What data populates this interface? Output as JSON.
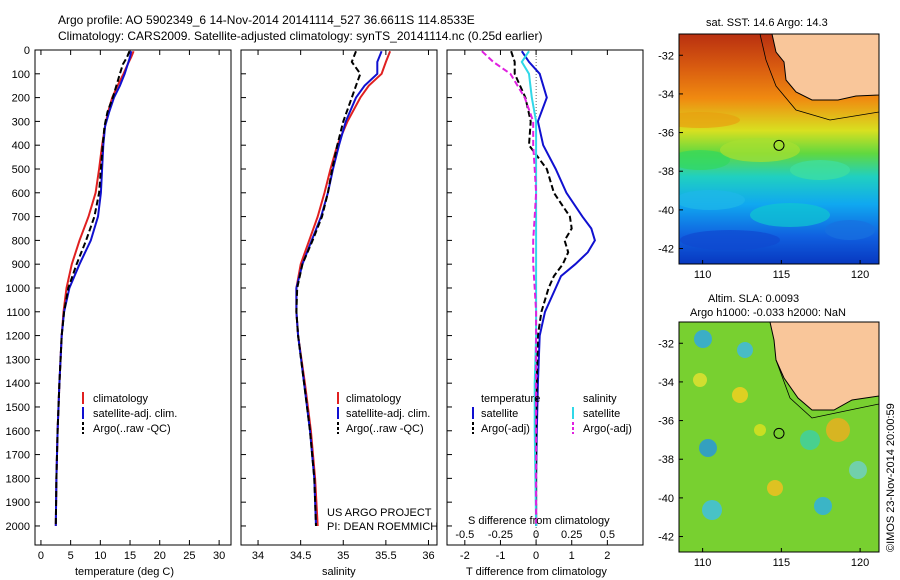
{
  "title": {
    "line1": "Argo profile: AO 5902349_6 14-Nov-2014 20141114_527 36.6611S 114.8533E",
    "line2": "Climatology: CARS2009. Satellite-adjusted climatology: synTS_20141114.nc (0.25d earlier)"
  },
  "colors": {
    "red": "#e02020",
    "blue": "#1010d0",
    "black": "#000000",
    "cyan": "#30d8e8",
    "magenta": "#e020e0",
    "land": "#f9c69a"
  },
  "chart_data": [
    {
      "id": "temperature-panel",
      "type": "line",
      "xlabel": "temperature (deg C)",
      "xlim": [
        -1,
        32
      ],
      "xticks": [
        "0",
        "5",
        "10",
        "15",
        "20",
        "25",
        "30"
      ],
      "xtick_values": [
        0,
        5,
        10,
        15,
        20,
        25,
        30
      ],
      "ylim": [
        2080,
        0
      ],
      "yticks": [
        "0",
        "100",
        "200",
        "300",
        "400",
        "500",
        "600",
        "700",
        "800",
        "900",
        "1000",
        "1100",
        "1200",
        "1300",
        "1400",
        "1500",
        "1600",
        "1700",
        "1800",
        "1900",
        "2000"
      ],
      "ytick_values": [
        0,
        100,
        200,
        300,
        400,
        500,
        600,
        700,
        800,
        900,
        1000,
        1100,
        1200,
        1300,
        1400,
        1500,
        1600,
        1700,
        1800,
        1900,
        2000
      ],
      "legend": [
        "climatology",
        "satellite-adj. clim.",
        "Argo(..raw -QC)"
      ],
      "series": [
        {
          "name": "climatology",
          "color": "red",
          "dash": "",
          "depth": [
            5,
            30,
            60,
            100,
            150,
            200,
            260,
            320,
            400,
            500,
            600,
            700,
            800,
            900,
            1000,
            1100,
            1200,
            1400,
            1600,
            1800,
            2000
          ],
          "values": [
            15.6,
            15.2,
            14.6,
            13.9,
            12.9,
            12.0,
            11.3,
            10.8,
            10.3,
            9.8,
            9.2,
            8.0,
            6.5,
            5.2,
            4.3,
            3.8,
            3.5,
            3.1,
            2.8,
            2.6,
            2.5
          ]
        },
        {
          "name": "satellite-adj. clim.",
          "color": "blue",
          "dash": "",
          "depth": [
            5,
            30,
            60,
            100,
            150,
            200,
            260,
            320,
            400,
            500,
            600,
            700,
            800,
            900,
            1000,
            1100,
            1200,
            1400,
            1600,
            1800,
            2000
          ],
          "values": [
            15.2,
            15.0,
            14.6,
            14.1,
            13.3,
            12.3,
            11.5,
            10.8,
            10.5,
            10.3,
            10.1,
            9.6,
            8.4,
            6.5,
            4.8,
            3.9,
            3.5,
            3.1,
            2.8,
            2.6,
            2.5
          ]
        },
        {
          "name": "Argo(..raw -QC)",
          "color": "black",
          "dash": "6,3",
          "depth": [
            5,
            30,
            60,
            100,
            150,
            200,
            260,
            320,
            400,
            500,
            600,
            700,
            800,
            900,
            1000,
            1100,
            1200,
            1400,
            1600,
            1800,
            2000
          ],
          "values": [
            14.9,
            14.5,
            13.8,
            13.3,
            12.7,
            12.1,
            11.2,
            10.7,
            10.4,
            10.1,
            9.8,
            9.0,
            7.6,
            6.0,
            4.6,
            3.9,
            3.5,
            3.1,
            2.8,
            2.6,
            2.5
          ]
        }
      ]
    },
    {
      "id": "salinity-panel",
      "type": "line",
      "xlabel": "salinity",
      "xlim": [
        33.8,
        36.1
      ],
      "xticks": [
        "34",
        "34.5",
        "35",
        "35.5",
        "36"
      ],
      "xtick_values": [
        34,
        34.5,
        35,
        35.5,
        36
      ],
      "ylim": [
        2080,
        0
      ],
      "legend": [
        "climatology",
        "satellite-adj. clim.",
        "Argo(..raw -QC)"
      ],
      "annotation": [
        "US ARGO PROJECT",
        "PI: DEAN ROEMMICH"
      ],
      "series": [
        {
          "name": "climatology",
          "color": "red",
          "dash": "",
          "depth": [
            5,
            50,
            100,
            150,
            200,
            300,
            400,
            500,
            600,
            700,
            800,
            900,
            1000,
            1100,
            1200,
            1400,
            1600,
            1800,
            2000
          ],
          "values": [
            35.55,
            35.5,
            35.45,
            35.3,
            35.2,
            35.05,
            34.93,
            34.85,
            34.78,
            34.7,
            34.6,
            34.5,
            34.45,
            34.45,
            34.47,
            34.55,
            34.62,
            34.67,
            34.7
          ]
        },
        {
          "name": "satellite-adj. clim.",
          "color": "blue",
          "dash": "",
          "depth": [
            5,
            50,
            100,
            150,
            200,
            300,
            400,
            500,
            600,
            700,
            800,
            900,
            1000,
            1100,
            1200,
            1400,
            1600,
            1800,
            2000
          ],
          "values": [
            35.45,
            35.4,
            35.4,
            35.25,
            35.15,
            35.03,
            34.95,
            34.88,
            34.82,
            34.74,
            34.63,
            34.52,
            34.45,
            34.45,
            34.47,
            34.54,
            34.61,
            34.66,
            34.68
          ]
        },
        {
          "name": "Argo(..raw -QC)",
          "color": "black",
          "dash": "6,3",
          "depth": [
            5,
            50,
            100,
            150,
            200,
            300,
            400,
            500,
            600,
            700,
            800,
            900,
            1000,
            1100,
            1200,
            1400,
            1600,
            1800,
            2000
          ],
          "values": [
            35.15,
            35.1,
            35.2,
            35.15,
            35.1,
            35.0,
            34.93,
            34.87,
            34.82,
            34.75,
            34.64,
            34.52,
            34.46,
            34.45,
            34.47,
            34.54,
            34.61,
            34.66,
            34.68
          ]
        }
      ]
    },
    {
      "id": "difference-panel",
      "type": "line",
      "xlabel": "T difference from climatology",
      "xlabel2": "S difference from climatology",
      "xlim": [
        -2.5,
        3
      ],
      "xticks": [
        "-2",
        "-1",
        "0",
        "1",
        "2"
      ],
      "xtick_values": [
        -2,
        -1,
        0,
        1,
        2
      ],
      "x2ticks": [
        "-0.5",
        "-0.25",
        "0",
        "0.25",
        "0.5"
      ],
      "x2tick_values": [
        -0.5,
        -0.25,
        0,
        0.25,
        0.5
      ],
      "ylim": [
        2080,
        0
      ],
      "legend_headers": [
        "temperature",
        "salinity"
      ],
      "legend": [
        "satellite",
        "Argo(-adj)",
        "satellite",
        "Argo(-adj)"
      ],
      "series": [
        {
          "name": "satellite",
          "group": "temperature",
          "color": "blue",
          "dash": "",
          "depth": [
            5,
            50,
            100,
            200,
            300,
            400,
            500,
            600,
            700,
            750,
            800,
            850,
            900,
            950,
            1000,
            1100,
            1200,
            1400,
            1600,
            1800,
            2000
          ],
          "values": [
            -0.4,
            -0.2,
            0.1,
            0.3,
            0.05,
            0.2,
            0.55,
            0.85,
            1.3,
            1.55,
            1.65,
            1.45,
            1.1,
            0.7,
            0.55,
            0.25,
            0.1,
            0.05,
            0.02,
            0.0,
            0.0
          ]
        },
        {
          "name": "Argo(-adj)",
          "group": "temperature",
          "color": "black",
          "dash": "6,3",
          "depth": [
            5,
            50,
            100,
            200,
            300,
            400,
            500,
            600,
            700,
            750,
            800,
            850,
            900,
            950,
            1000,
            1100,
            1200,
            1400,
            1600,
            1800,
            2000
          ],
          "values": [
            -0.7,
            -0.6,
            -0.6,
            -0.3,
            -0.15,
            -0.2,
            0.3,
            0.5,
            0.95,
            1.0,
            0.8,
            0.9,
            0.75,
            0.5,
            0.35,
            0.15,
            0.05,
            0.02,
            0.0,
            0.0,
            0.0
          ]
        },
        {
          "name": "satellite",
          "group": "salinity",
          "color": "cyan",
          "dash": "",
          "depth": [
            5,
            50,
            100,
            200,
            300,
            400,
            500,
            600,
            700,
            800,
            900,
            1000,
            1100,
            1200,
            1400,
            1600,
            1800,
            2000
          ],
          "values": [
            -0.05,
            -0.1,
            -0.05,
            -0.03,
            0.0,
            0.0,
            0.0,
            0.0,
            0.0,
            0.0,
            0.0,
            0.0,
            0.0,
            0.0,
            -0.01,
            -0.01,
            -0.005,
            0.0
          ]
        },
        {
          "name": "Argo(-adj)",
          "group": "salinity",
          "color": "magenta",
          "dash": "6,3",
          "depth": [
            5,
            50,
            100,
            200,
            300,
            400,
            500,
            600,
            700,
            800,
            900,
            1000,
            1100,
            1200,
            1400,
            1600,
            1800,
            2000
          ],
          "values": [
            -0.38,
            -0.3,
            -0.18,
            -0.08,
            -0.02,
            -0.02,
            -0.01,
            0.0,
            -0.01,
            -0.02,
            -0.02,
            -0.01,
            0.0,
            0.0,
            0.0,
            0.0,
            0.0,
            0.0
          ]
        }
      ]
    },
    {
      "id": "sst-map",
      "type": "heatmap",
      "title": "sat. SST: 14.6 Argo: 14.3",
      "xticks": [
        "110",
        "115",
        "120"
      ],
      "yticks": [
        "-32",
        "-34",
        "-36",
        "-38",
        "-40",
        "-42"
      ],
      "xlim": [
        108.5,
        121.2
      ],
      "ylim": [
        -42.8,
        -30.9
      ],
      "marker": {
        "lon": 114.85,
        "lat": -36.66
      }
    },
    {
      "id": "sla-map",
      "type": "heatmap",
      "title": "Altim. SLA: 0.0093",
      "subtitle": "Argo h1000: -0.033 h2000: NaN",
      "xticks": [
        "110",
        "115",
        "120"
      ],
      "yticks": [
        "-32",
        "-34",
        "-36",
        "-38",
        "-40",
        "-42"
      ],
      "xlim": [
        108.5,
        121.2
      ],
      "ylim": [
        -42.8,
        -30.9
      ],
      "marker": {
        "lon": 114.85,
        "lat": -36.66
      }
    }
  ],
  "footer_stamp": "©IMOS 23-Nov-2014 20:00:59"
}
